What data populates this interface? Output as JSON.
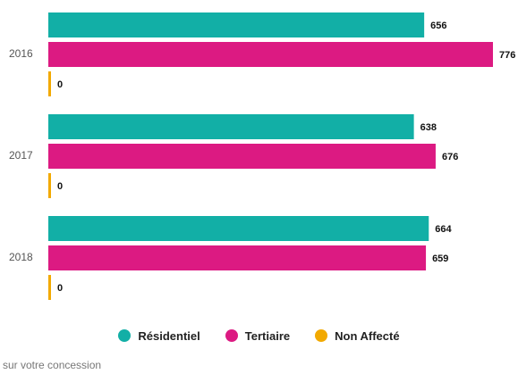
{
  "chart_data": {
    "type": "bar",
    "orientation": "horizontal",
    "categories": [
      "2016",
      "2017",
      "2018"
    ],
    "series": [
      {
        "name": "Résidentiel",
        "color": "#12AFA6",
        "values": [
          656,
          638,
          664
        ]
      },
      {
        "name": "Tertiaire",
        "color": "#DC1A82",
        "values": [
          776,
          676,
          659
        ]
      },
      {
        "name": "Non Affecté",
        "color": "#F2A900",
        "values": [
          0,
          0,
          0
        ]
      }
    ],
    "xlim": [
      0,
      776
    ],
    "grid": false,
    "legend_position": "bottom",
    "footnote": "sur votre concession"
  }
}
